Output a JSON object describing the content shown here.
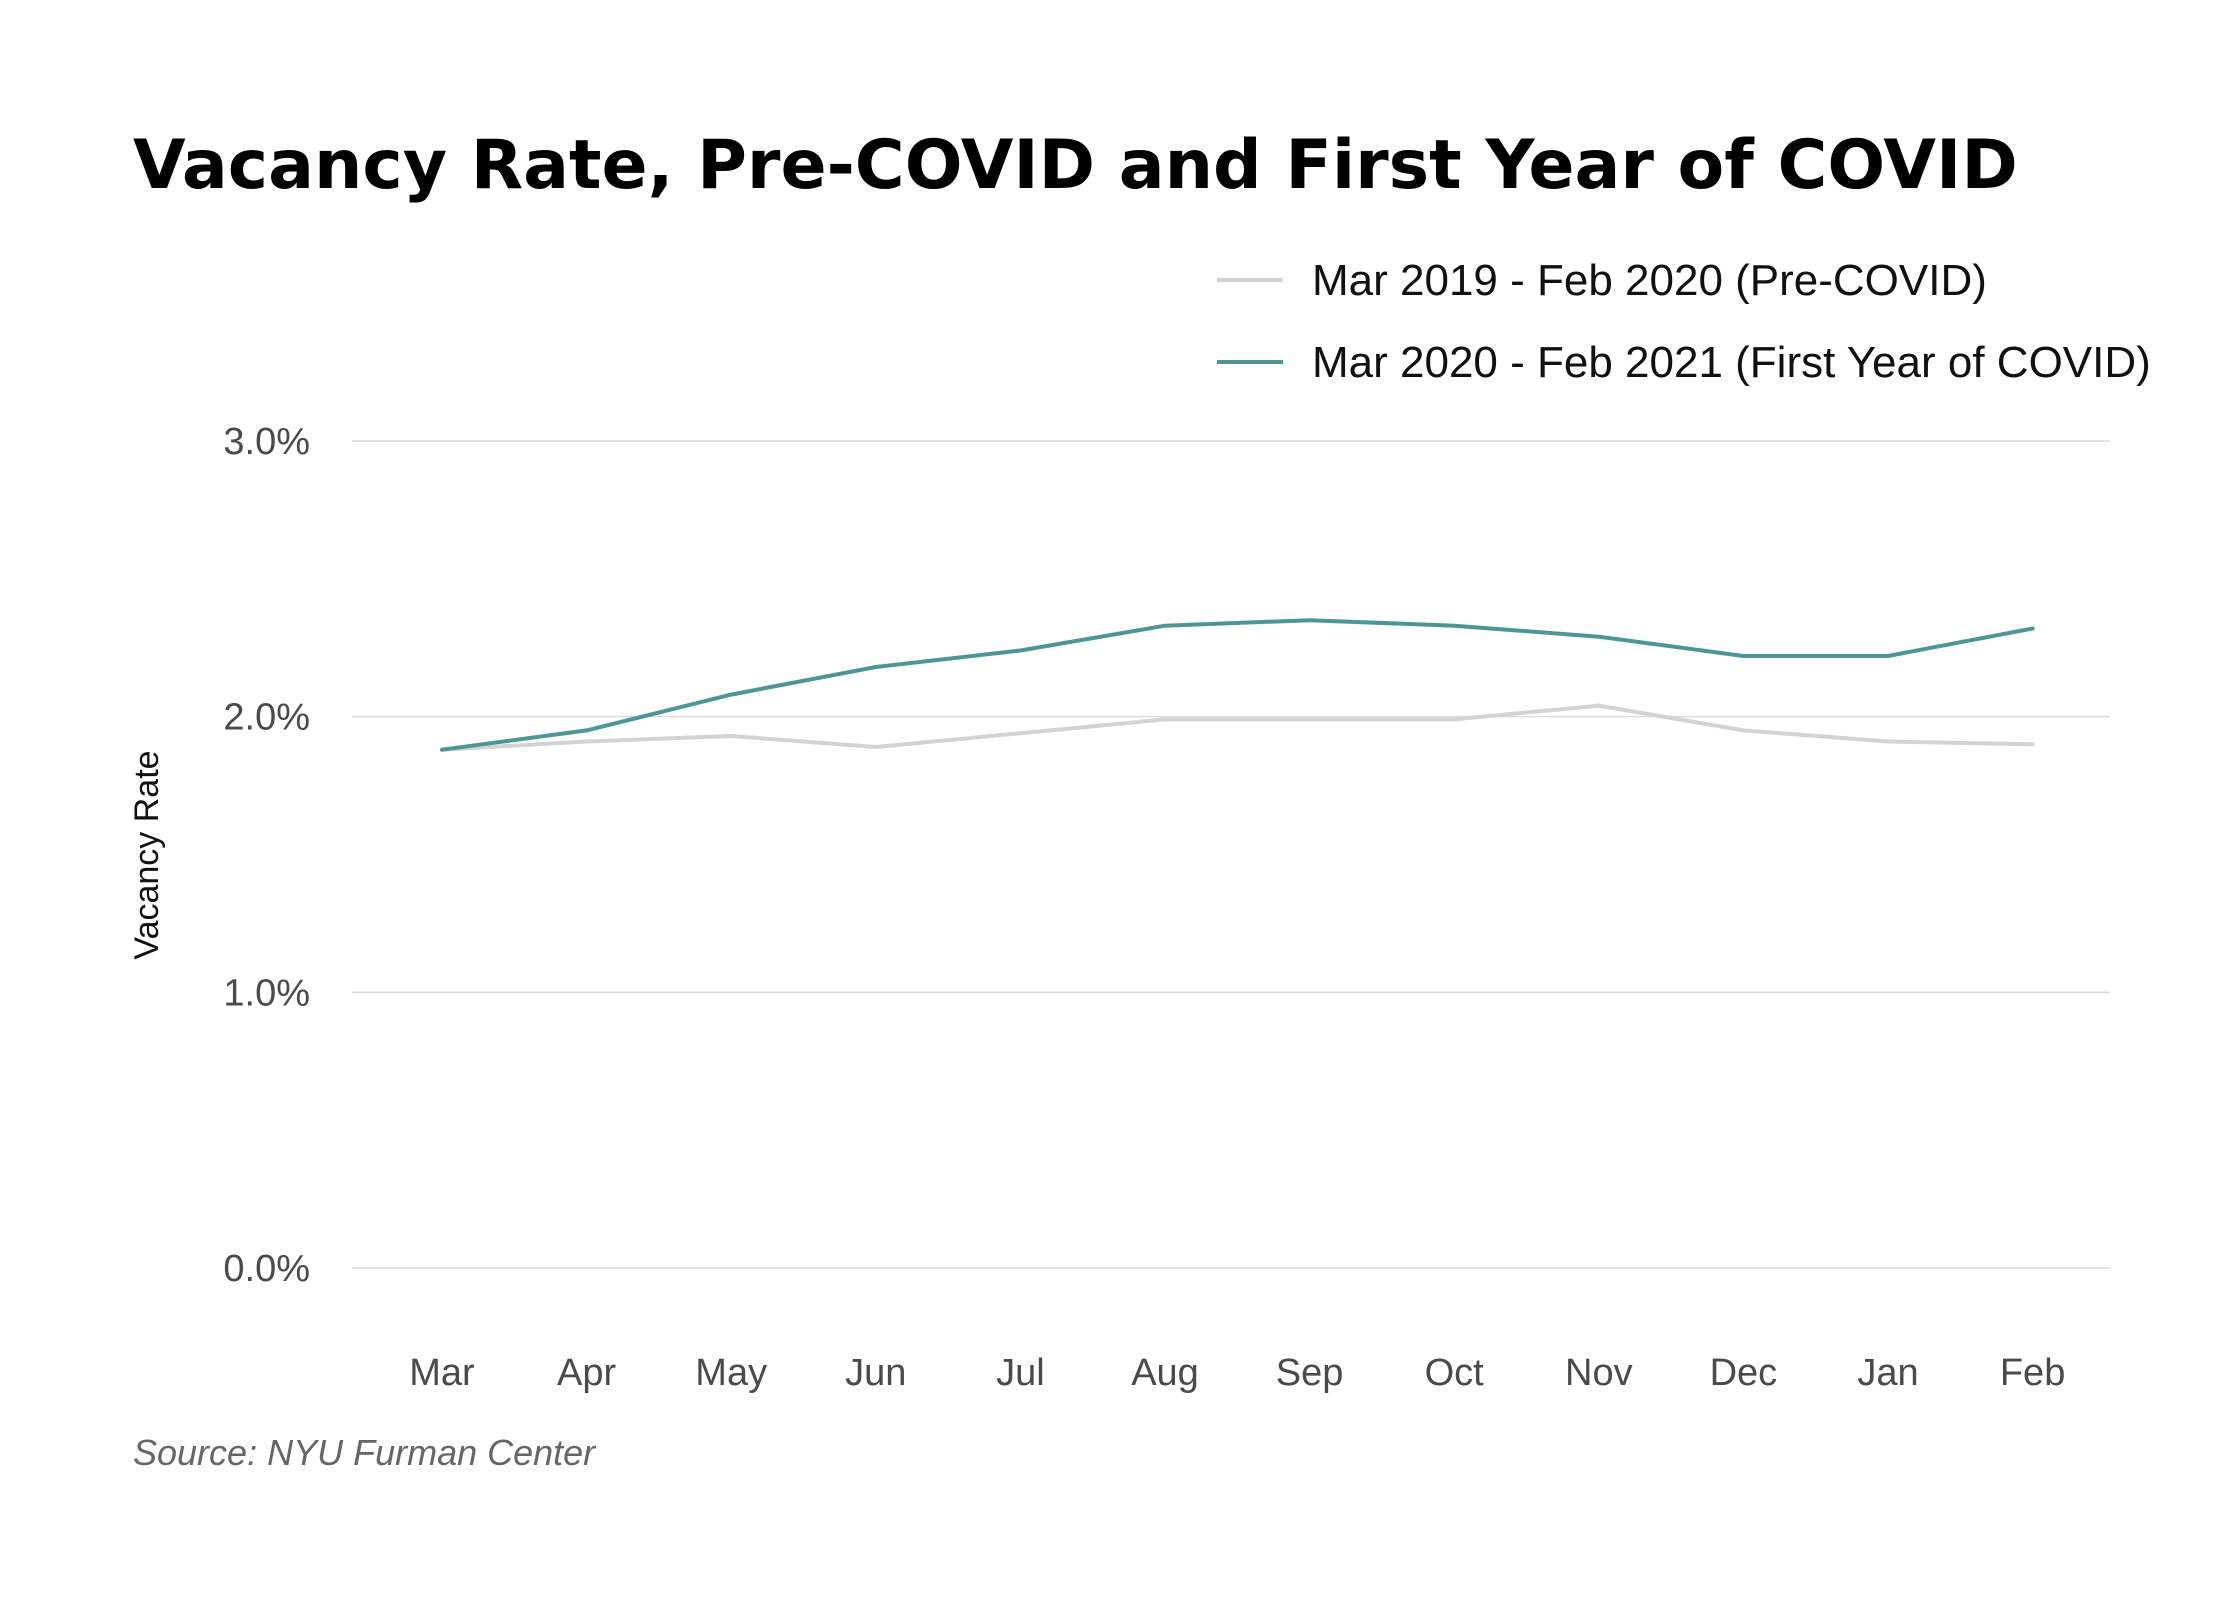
{
  "chart_data": {
    "type": "line",
    "title": "Vacancy Rate, Pre-COVID and First Year of COVID",
    "xlabel": "",
    "ylabel": "Vacancy Rate",
    "source": "Source: NYU Furman Center",
    "categories": [
      "Mar",
      "Apr",
      "May",
      "Jun",
      "Jul",
      "Aug",
      "Sep",
      "Oct",
      "Nov",
      "Dec",
      "Jan",
      "Feb"
    ],
    "ylim": [
      0,
      3.0
    ],
    "yticks": [
      0,
      1,
      2,
      3
    ],
    "ytick_labels": [
      "0.0%",
      "1.0%",
      "2.0%",
      "3.0%"
    ],
    "grid": true,
    "legend_position": "top-right",
    "series": [
      {
        "name": "Mar 2019 - Feb 2020 (Pre-COVID)",
        "color": "#d3d3d3",
        "values": [
          1.88,
          1.91,
          1.93,
          1.89,
          1.94,
          1.99,
          1.99,
          1.99,
          2.04,
          1.95,
          1.91,
          1.9
        ]
      },
      {
        "name": "Mar 2020 - Feb 2021 (First Year of COVID)",
        "color": "#4e9595",
        "values": [
          1.88,
          1.95,
          2.08,
          2.18,
          2.24,
          2.33,
          2.35,
          2.33,
          2.29,
          2.22,
          2.22,
          2.32
        ]
      }
    ]
  }
}
